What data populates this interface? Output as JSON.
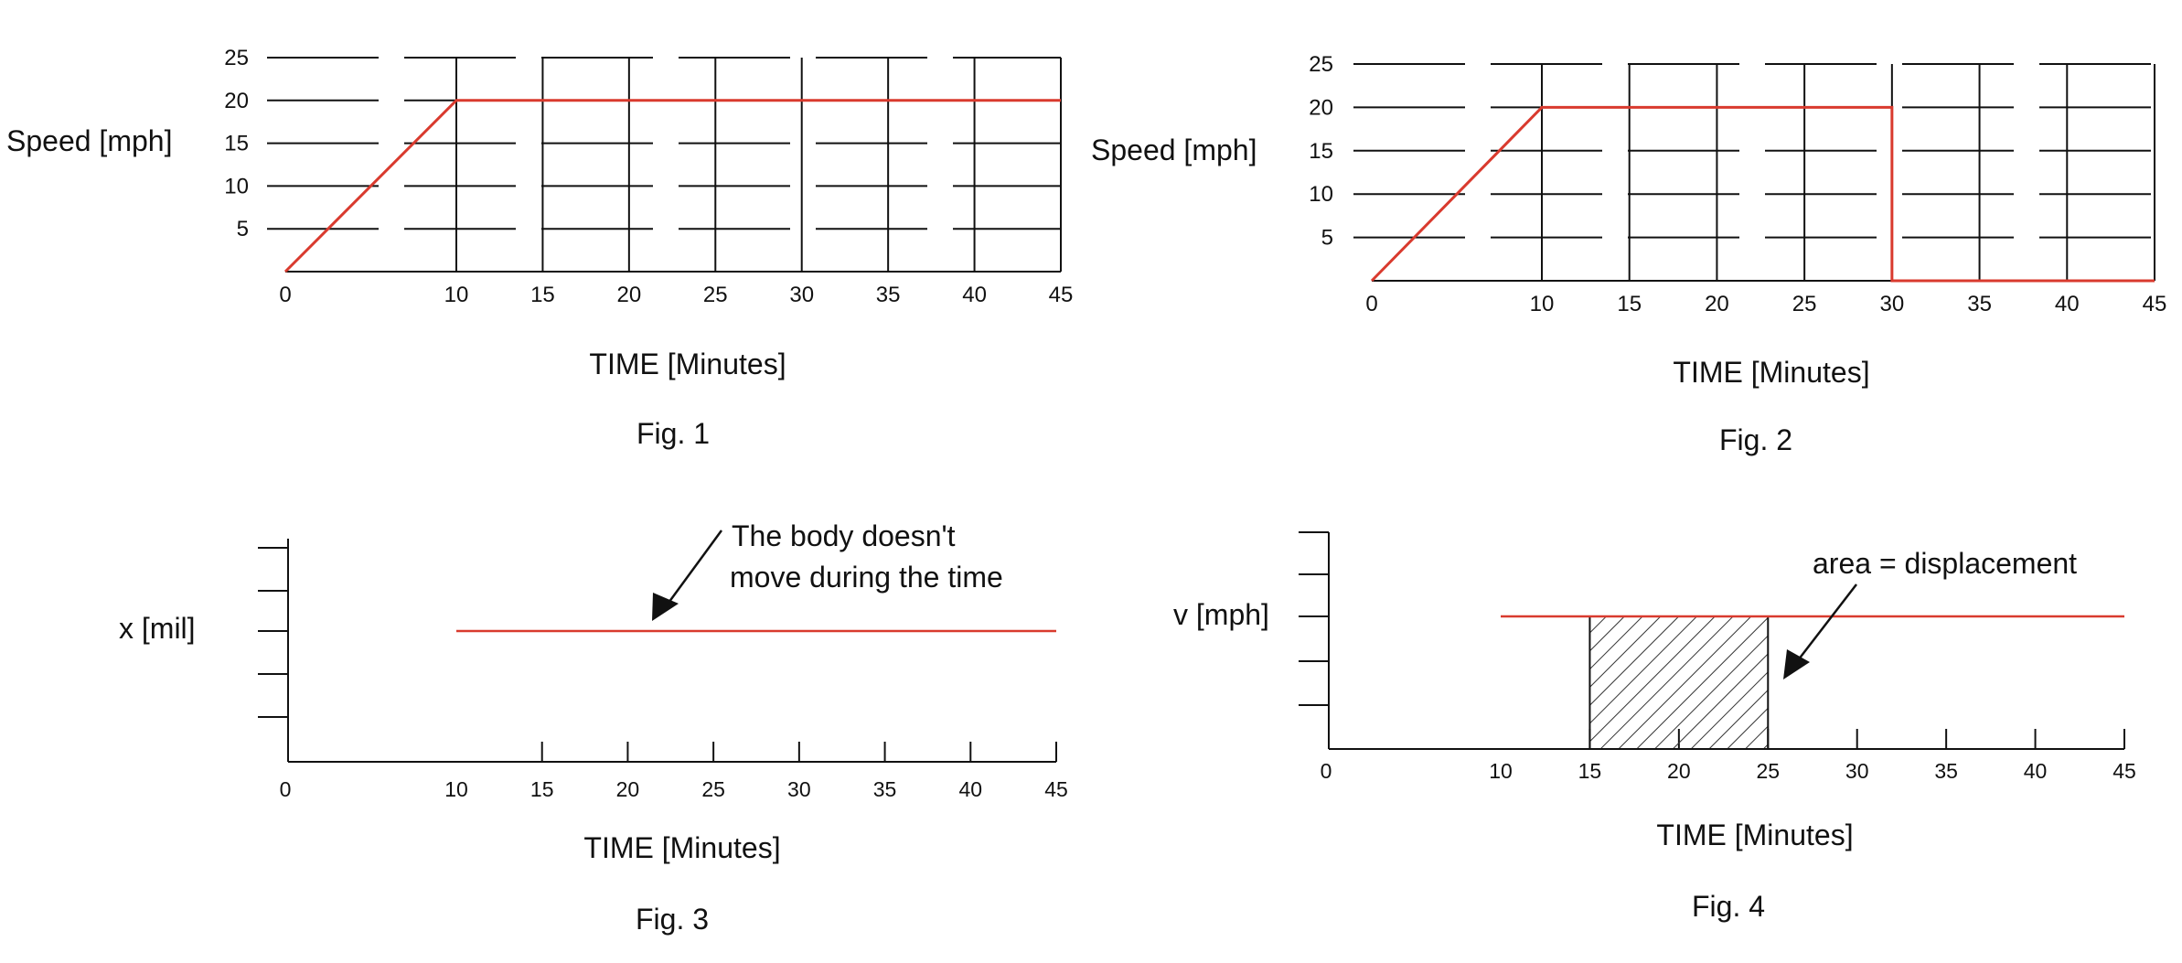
{
  "colors": {
    "axis": "#111111",
    "series": "#d93a2e",
    "hatch": "#333333"
  },
  "axis_labels": {
    "speed": "Speed  [mph]",
    "time": "TIME  [Minutes]",
    "x": "x [mil]",
    "v": "v [mph]"
  },
  "figures": {
    "fig1": {
      "caption": "Fig. 1"
    },
    "fig2": {
      "caption": "Fig. 2"
    },
    "fig3": {
      "caption": "Fig. 3",
      "annotation": [
        "The body doesn't",
        "move during the time"
      ]
    },
    "fig4": {
      "caption": "Fig. 4",
      "annotation": "area = displacement"
    }
  },
  "chart_data": [
    {
      "id": "fig1",
      "type": "line",
      "title": "Fig. 1",
      "xlabel": "TIME  [Minutes]",
      "ylabel": "Speed  [mph]",
      "xlim": [
        0,
        45
      ],
      "ylim": [
        0,
        25
      ],
      "x_ticks": [
        "0",
        "10",
        "15",
        "20",
        "25",
        "30",
        "35",
        "40",
        "45"
      ],
      "y_ticks": [
        "5",
        "10",
        "15",
        "20",
        "25"
      ],
      "grid": true,
      "series": [
        {
          "x": [
            0,
            10,
            45
          ],
          "y": [
            0,
            20,
            20
          ]
        }
      ]
    },
    {
      "id": "fig2",
      "type": "line",
      "title": "Fig. 2",
      "xlabel": "TIME  [Minutes]",
      "ylabel": "Speed  [mph]",
      "xlim": [
        0,
        45
      ],
      "ylim": [
        0,
        25
      ],
      "x_ticks": [
        "0",
        "10",
        "15",
        "20",
        "25",
        "30",
        "35",
        "40",
        "45"
      ],
      "y_ticks": [
        "5",
        "10",
        "15",
        "20",
        "25"
      ],
      "grid": true,
      "series": [
        {
          "x": [
            0,
            10,
            30,
            30,
            45
          ],
          "y": [
            0,
            20,
            20,
            0,
            0
          ]
        }
      ]
    },
    {
      "id": "fig3",
      "type": "line",
      "title": "Fig. 3",
      "xlabel": "TIME  [Minutes]",
      "ylabel": "x [mil]",
      "xlim": [
        0,
        45
      ],
      "x_ticks": [
        "0",
        "10",
        "15",
        "20",
        "25",
        "30",
        "35",
        "40",
        "45"
      ],
      "y_ticks": [],
      "grid": false,
      "series": [
        {
          "x": [
            10,
            45
          ],
          "y": [
            3,
            3
          ]
        }
      ]
    },
    {
      "id": "fig4",
      "type": "line",
      "title": "Fig. 4",
      "xlabel": "TIME  [Minutes]",
      "ylabel": "v [mph]",
      "xlim": [
        0,
        45
      ],
      "x_ticks": [
        "0",
        "10",
        "15",
        "20",
        "25",
        "30",
        "35",
        "40",
        "45"
      ],
      "y_ticks": [],
      "grid": false,
      "series": [
        {
          "x": [
            10,
            45
          ],
          "y": [
            3,
            3
          ]
        }
      ],
      "shaded_interval": [
        15,
        25
      ]
    }
  ]
}
